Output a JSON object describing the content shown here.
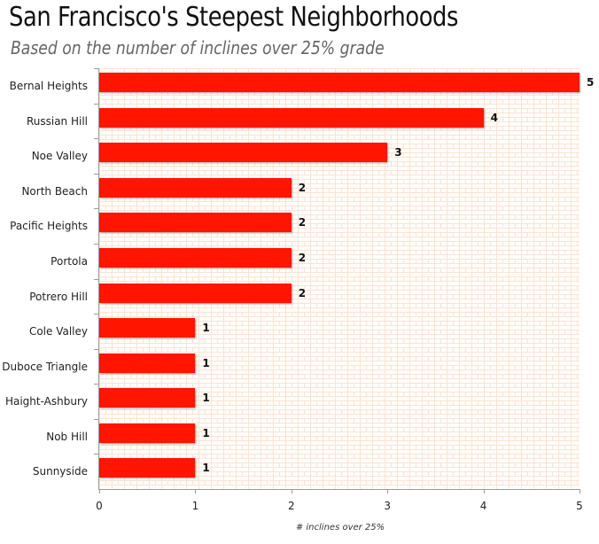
{
  "header": {
    "title": "San Francisco's Steepest Neighborhoods",
    "subtitle": "Based on the number of inclines over 25% grade"
  },
  "chart_data": {
    "type": "bar",
    "orientation": "horizontal",
    "title": "San Francisco's Steepest Neighborhoods",
    "subtitle": "Based on the number of inclines over 25% grade",
    "categories": [
      "Bernal Heights",
      "Russian Hill",
      "Noe Valley",
      "North Beach",
      "Pacific Heights",
      "Portola",
      "Potrero Hill",
      "Cole Valley",
      "Duboce Triangle",
      "Haight-Ashbury",
      "Nob Hill",
      "Sunnyside"
    ],
    "values": [
      5,
      4,
      3,
      2,
      2,
      2,
      2,
      1,
      1,
      1,
      1,
      1
    ],
    "data_labels": [
      "5",
      "4",
      "3",
      "2",
      "2",
      "2",
      "2",
      "1",
      "1",
      "1",
      "1",
      "1"
    ],
    "xlabel": "# inclines over 25%",
    "ylabel": "",
    "xlim": [
      0,
      5
    ],
    "xticks": [
      "0",
      "1",
      "2",
      "3",
      "4",
      "5"
    ],
    "grid": false,
    "legend": null,
    "bar_color": "#ff1500",
    "background": "brick pattern"
  }
}
